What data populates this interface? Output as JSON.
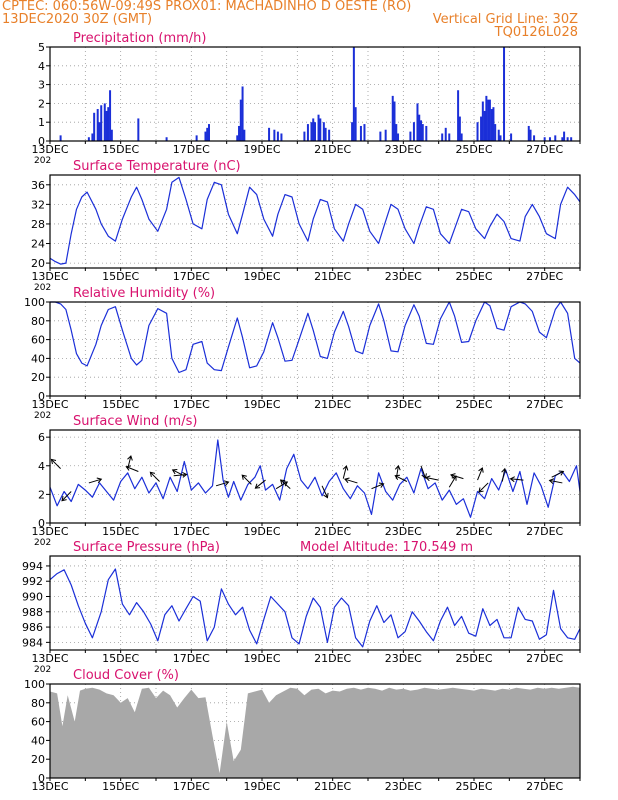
{
  "header": {
    "line1_left": "CPTEC:   060:56W-09:49S   PROX01: MACHADINHO D OESTE (RO)",
    "line2_left": "13DEC2020 30Z (GMT)",
    "line2_right": "Vertical Grid Line: 30Z",
    "line3_right": "TQ0126L028"
  },
  "x_axis": {
    "tick_labels": [
      "13DEC",
      "15DEC",
      "17DEC",
      "19DEC",
      "21DEC",
      "23DEC",
      "25DEC",
      "27DEC"
    ],
    "year_stub": "202"
  },
  "colors": {
    "line": "#1b2fd8",
    "title": "#d8126e",
    "header": "#e8802a",
    "cloud": "#a8a8a8",
    "arrow": "#000000"
  },
  "chart_data": [
    {
      "type": "bar",
      "title": "Precipitation (mm/h)",
      "ylim": [
        0,
        5
      ],
      "yticks": [
        0,
        1,
        2,
        3,
        4,
        5
      ],
      "x_unit": "days since 13DEC 00Z",
      "points": [
        [
          0.3,
          0.3
        ],
        [
          1.1,
          0.2
        ],
        [
          1.2,
          0.4
        ],
        [
          1.25,
          1.5
        ],
        [
          1.35,
          1.7
        ],
        [
          1.4,
          1.0
        ],
        [
          1.45,
          1.9
        ],
        [
          1.55,
          2.0
        ],
        [
          1.6,
          1.6
        ],
        [
          1.65,
          1.8
        ],
        [
          1.7,
          2.7
        ],
        [
          1.75,
          0.6
        ],
        [
          2.5,
          1.2
        ],
        [
          3.3,
          0.2
        ],
        [
          4.15,
          0.3
        ],
        [
          4.4,
          0.5
        ],
        [
          4.45,
          0.7
        ],
        [
          4.5,
          0.9
        ],
        [
          5.3,
          0.3
        ],
        [
          5.35,
          0.8
        ],
        [
          5.4,
          2.2
        ],
        [
          5.45,
          2.9
        ],
        [
          5.5,
          0.6
        ],
        [
          6.2,
          0.7
        ],
        [
          6.35,
          0.6
        ],
        [
          6.45,
          0.5
        ],
        [
          6.55,
          0.4
        ],
        [
          7.2,
          0.5
        ],
        [
          7.3,
          0.9
        ],
        [
          7.4,
          1.0
        ],
        [
          7.45,
          1.2
        ],
        [
          7.5,
          1.0
        ],
        [
          7.6,
          1.4
        ],
        [
          7.65,
          1.2
        ],
        [
          7.75,
          1.0
        ],
        [
          7.8,
          0.7
        ],
        [
          7.9,
          0.6
        ],
        [
          8.55,
          1.0
        ],
        [
          8.6,
          5.0
        ],
        [
          8.65,
          1.8
        ],
        [
          8.8,
          0.8
        ],
        [
          8.9,
          0.9
        ],
        [
          9.35,
          0.5
        ],
        [
          9.5,
          0.6
        ],
        [
          9.7,
          2.4
        ],
        [
          9.75,
          2.1
        ],
        [
          9.8,
          0.9
        ],
        [
          9.85,
          0.4
        ],
        [
          10.2,
          0.5
        ],
        [
          10.3,
          1.0
        ],
        [
          10.4,
          2.0
        ],
        [
          10.45,
          1.4
        ],
        [
          10.5,
          1.1
        ],
        [
          10.55,
          0.9
        ],
        [
          10.65,
          0.8
        ],
        [
          11.1,
          0.4
        ],
        [
          11.2,
          0.7
        ],
        [
          11.3,
          0.4
        ],
        [
          11.55,
          2.7
        ],
        [
          11.6,
          1.3
        ],
        [
          11.65,
          0.4
        ],
        [
          12.1,
          1.0
        ],
        [
          12.2,
          1.3
        ],
        [
          12.25,
          2.1
        ],
        [
          12.3,
          1.6
        ],
        [
          12.35,
          2.4
        ],
        [
          12.4,
          2.2
        ],
        [
          12.45,
          2.2
        ],
        [
          12.5,
          1.7
        ],
        [
          12.55,
          1.8
        ],
        [
          12.6,
          0.9
        ],
        [
          12.7,
          0.6
        ],
        [
          12.75,
          0.3
        ],
        [
          12.85,
          5.0
        ],
        [
          13.05,
          0.4
        ],
        [
          13.55,
          0.8
        ],
        [
          13.6,
          0.6
        ],
        [
          13.7,
          0.3
        ],
        [
          14.0,
          0.2
        ],
        [
          14.15,
          0.2
        ],
        [
          14.3,
          0.3
        ],
        [
          14.5,
          0.2
        ],
        [
          14.55,
          0.5
        ],
        [
          14.65,
          0.2
        ],
        [
          14.75,
          0.2
        ]
      ]
    },
    {
      "type": "line",
      "title": "Surface Temperature (nC)",
      "ylim": [
        19,
        38
      ],
      "yticks": [
        20,
        24,
        28,
        32,
        36
      ],
      "x": [
        0,
        0.15,
        0.3,
        0.45,
        0.6,
        0.75,
        0.9,
        1.05,
        1.3,
        1.45,
        1.65,
        1.85,
        2.05,
        2.3,
        2.45,
        2.6,
        2.8,
        3.05,
        3.3,
        3.45,
        3.65,
        3.85,
        4.05,
        4.3,
        4.45,
        4.65,
        4.85,
        5.05,
        5.3,
        5.45,
        5.65,
        5.85,
        6.05,
        6.3,
        6.45,
        6.65,
        6.85,
        7.05,
        7.3,
        7.45,
        7.65,
        7.85,
        8.05,
        8.3,
        8.45,
        8.65,
        8.85,
        9.05,
        9.3,
        9.45,
        9.65,
        9.85,
        10.05,
        10.3,
        10.45,
        10.65,
        10.85,
        11.05,
        11.3,
        11.45,
        11.65,
        11.85,
        12.05,
        12.3,
        12.45,
        12.65,
        12.85,
        13.05,
        13.3,
        13.45,
        13.65,
        13.85,
        14.05,
        14.3,
        14.45,
        14.65,
        14.85,
        15.0
      ],
      "values": [
        21,
        20.3,
        19.8,
        20,
        26,
        31,
        33.5,
        34.5,
        31,
        28,
        25.5,
        24.5,
        29,
        33.5,
        35.5,
        33,
        29,
        26.5,
        31,
        36.5,
        37.5,
        33,
        28,
        27,
        33,
        36.5,
        36,
        30,
        26,
        30,
        35.5,
        34,
        29,
        25.5,
        30,
        34,
        33.5,
        28,
        24.5,
        29,
        33,
        32.5,
        27,
        24.5,
        28,
        32,
        31,
        26.5,
        24,
        27.5,
        32,
        31,
        27,
        24,
        27.5,
        31.5,
        31,
        26,
        24,
        27,
        31,
        30.5,
        27,
        25,
        27.5,
        30,
        28.5,
        25,
        24.5,
        29.5,
        32,
        29.5,
        26,
        25,
        32,
        35.5,
        34,
        32.5
      ]
    },
    {
      "type": "line",
      "title": "Relative Humidity (%)",
      "ylim": [
        0,
        100
      ],
      "yticks": [
        0,
        20,
        40,
        60,
        80,
        100
      ],
      "x": [
        0,
        0.15,
        0.3,
        0.45,
        0.6,
        0.75,
        0.9,
        1.05,
        1.3,
        1.45,
        1.65,
        1.85,
        2.05,
        2.3,
        2.45,
        2.6,
        2.8,
        3.05,
        3.3,
        3.45,
        3.65,
        3.85,
        4.05,
        4.3,
        4.45,
        4.65,
        4.85,
        5.05,
        5.3,
        5.45,
        5.65,
        5.85,
        6.05,
        6.3,
        6.45,
        6.65,
        6.85,
        7.05,
        7.3,
        7.45,
        7.65,
        7.85,
        8.05,
        8.3,
        8.45,
        8.65,
        8.85,
        9.05,
        9.3,
        9.45,
        9.65,
        9.85,
        10.05,
        10.3,
        10.45,
        10.65,
        10.85,
        11.05,
        11.3,
        11.45,
        11.65,
        11.85,
        12.05,
        12.3,
        12.45,
        12.65,
        12.85,
        13.05,
        13.3,
        13.45,
        13.65,
        13.85,
        14.05,
        14.3,
        14.45,
        14.65,
        14.85,
        15.0
      ],
      "values": [
        100,
        100,
        98,
        92,
        70,
        45,
        35,
        32,
        55,
        75,
        92,
        95,
        70,
        40,
        33,
        38,
        75,
        93,
        88,
        40,
        25,
        28,
        55,
        58,
        35,
        28,
        27,
        52,
        83,
        62,
        30,
        32,
        47,
        78,
        62,
        37,
        38,
        60,
        88,
        70,
        42,
        40,
        68,
        90,
        74,
        48,
        45,
        75,
        98,
        80,
        48,
        47,
        75,
        97,
        85,
        56,
        55,
        82,
        100,
        85,
        57,
        58,
        80,
        100,
        96,
        72,
        70,
        95,
        100,
        98,
        90,
        68,
        62,
        92,
        100,
        88,
        40,
        35
      ]
    },
    {
      "type": "line",
      "title": "Surface Wind (m/s)",
      "ylim": [
        0,
        6.5
      ],
      "yticks": [
        0,
        2,
        4,
        6
      ],
      "note": "speed series with wind-direction arrows",
      "x": [
        0,
        0.2,
        0.4,
        0.6,
        0.8,
        1.0,
        1.2,
        1.4,
        1.6,
        1.8,
        2.0,
        2.2,
        2.4,
        2.6,
        2.8,
        3.0,
        3.2,
        3.4,
        3.6,
        3.8,
        4.0,
        4.2,
        4.4,
        4.6,
        4.75,
        4.9,
        5.05,
        5.2,
        5.4,
        5.6,
        5.8,
        5.95,
        6.1,
        6.3,
        6.5,
        6.7,
        6.9,
        7.1,
        7.3,
        7.5,
        7.7,
        7.9,
        8.1,
        8.3,
        8.5,
        8.7,
        8.9,
        9.1,
        9.3,
        9.5,
        9.7,
        9.9,
        10.1,
        10.3,
        10.5,
        10.7,
        10.9,
        11.1,
        11.3,
        11.5,
        11.7,
        11.9,
        12.1,
        12.3,
        12.5,
        12.7,
        12.9,
        13.1,
        13.3,
        13.5,
        13.7,
        13.9,
        14.1,
        14.3,
        14.5,
        14.7,
        14.9,
        15.0
      ],
      "values": [
        2.5,
        1.2,
        2.2,
        1.5,
        2.7,
        2.3,
        1.8,
        2.8,
        2.2,
        1.6,
        2.9,
        3.5,
        2.4,
        3.2,
        2.1,
        2.8,
        1.7,
        3.2,
        2.2,
        4.3,
        2.3,
        2.8,
        2.1,
        2.6,
        5.8,
        3.0,
        1.8,
        2.9,
        1.6,
        2.7,
        3.2,
        4.0,
        2.3,
        2.7,
        1.6,
        3.8,
        4.8,
        3.0,
        2.4,
        3.2,
        1.9,
        2.9,
        3.5,
        2.4,
        1.7,
        2.6,
        2.1,
        0.6,
        3.5,
        2.2,
        1.6,
        2.7,
        3.2,
        2.1,
        3.8,
        2.4,
        2.8,
        1.6,
        2.3,
        1.3,
        1.7,
        0.4,
        2.2,
        1.7,
        3.1,
        2.3,
        3.7,
        2.2,
        3.6,
        1.3,
        3.5,
        2.6,
        1.1,
        3.3,
        3.6,
        2.9,
        4.0,
        2.2
      ],
      "arrows": [
        {
          "x": 0.3,
          "y": 3.8,
          "dx": -1,
          "dy": 1
        },
        {
          "x": 0.6,
          "y": 2.2,
          "dx": -1,
          "dy": -1
        },
        {
          "x": 1.1,
          "y": 2.8,
          "dx": 1,
          "dy": 0.3
        },
        {
          "x": 2.2,
          "y": 3.8,
          "dx": 0.3,
          "dy": 1.2
        },
        {
          "x": 2.5,
          "y": 3.6,
          "dx": -1,
          "dy": 0.4
        },
        {
          "x": 3.1,
          "y": 2.9,
          "dx": -1,
          "dy": 1
        },
        {
          "x": 3.5,
          "y": 3.3,
          "dx": 1,
          "dy": 0.1
        },
        {
          "x": 3.8,
          "y": 3.3,
          "dx": -1,
          "dy": 0.5
        },
        {
          "x": 4.7,
          "y": 2.6,
          "dx": 1,
          "dy": 0.3
        },
        {
          "x": 5.7,
          "y": 2.7,
          "dx": -1,
          "dy": 1
        },
        {
          "x": 6.1,
          "y": 3.0,
          "dx": -1,
          "dy": -0.8
        },
        {
          "x": 6.4,
          "y": 2.4,
          "dx": 1,
          "dy": 0.6
        },
        {
          "x": 6.8,
          "y": 2.4,
          "dx": -1,
          "dy": 0.9
        },
        {
          "x": 7.7,
          "y": 2.6,
          "dx": 0.5,
          "dy": -1.1
        },
        {
          "x": 8.3,
          "y": 3.1,
          "dx": 0.3,
          "dy": 1.2
        },
        {
          "x": 8.7,
          "y": 2.8,
          "dx": -1,
          "dy": 0.3
        },
        {
          "x": 9.1,
          "y": 2.4,
          "dx": 1,
          "dy": 0.4
        },
        {
          "x": 9.8,
          "y": 3.1,
          "dx": 0.2,
          "dy": 1.2
        },
        {
          "x": 10.1,
          "y": 2.9,
          "dx": -1,
          "dy": 0.5
        },
        {
          "x": 10.5,
          "y": 4.0,
          "dx": 0.4,
          "dy": -1.1
        },
        {
          "x": 11.0,
          "y": 3.0,
          "dx": -1,
          "dy": 0.2
        },
        {
          "x": 11.3,
          "y": 2.5,
          "dx": 0.6,
          "dy": 1.0
        },
        {
          "x": 11.7,
          "y": 3.1,
          "dx": -1,
          "dy": 0.3
        },
        {
          "x": 12.1,
          "y": 3.0,
          "dx": 0.4,
          "dy": 1.0
        },
        {
          "x": 12.4,
          "y": 2.8,
          "dx": -1,
          "dy": -1
        },
        {
          "x": 12.8,
          "y": 2.9,
          "dx": 0.2,
          "dy": 1.0
        },
        {
          "x": 13.4,
          "y": 3.0,
          "dx": -1,
          "dy": 0.1
        },
        {
          "x": 14.2,
          "y": 3.2,
          "dx": 1,
          "dy": 0.5
        },
        {
          "x": 14.5,
          "y": 2.8,
          "dx": -1,
          "dy": 0.2
        }
      ]
    },
    {
      "type": "line",
      "title": "Surface Pressure (hPa)",
      "extra_label": "Model Altitude: 170.549 m",
      "ylim": [
        983,
        995.3
      ],
      "yticks": [
        984,
        986,
        988,
        990,
        992,
        994
      ],
      "x": [
        0,
        0.2,
        0.4,
        0.6,
        0.8,
        1.0,
        1.2,
        1.45,
        1.65,
        1.85,
        2.05,
        2.25,
        2.45,
        2.65,
        2.85,
        3.05,
        3.25,
        3.45,
        3.65,
        3.85,
        4.05,
        4.25,
        4.45,
        4.65,
        4.85,
        5.05,
        5.25,
        5.45,
        5.65,
        5.85,
        6.05,
        6.25,
        6.45,
        6.65,
        6.85,
        7.05,
        7.25,
        7.45,
        7.65,
        7.85,
        8.05,
        8.25,
        8.45,
        8.65,
        8.85,
        9.05,
        9.25,
        9.45,
        9.65,
        9.85,
        10.05,
        10.25,
        10.45,
        10.65,
        10.85,
        11.05,
        11.25,
        11.45,
        11.65,
        11.85,
        12.05,
        12.25,
        12.45,
        12.65,
        12.85,
        13.05,
        13.25,
        13.45,
        13.65,
        13.85,
        14.05,
        14.25,
        14.45,
        14.65,
        14.85,
        15.0
      ],
      "values": [
        992.2,
        993.0,
        993.5,
        991.5,
        988.8,
        986.5,
        984.6,
        988,
        992.2,
        993.6,
        989,
        987.6,
        989.2,
        988.0,
        986.4,
        984.2,
        987.6,
        988.8,
        986.8,
        988.4,
        990.0,
        989.4,
        984.2,
        986.0,
        991.0,
        989.0,
        987.6,
        988.6,
        985.6,
        983.8,
        987.0,
        990.0,
        989.0,
        988.0,
        984.6,
        983.8,
        987.4,
        989.8,
        988.6,
        984.0,
        988.6,
        989.8,
        988.8,
        984.6,
        983.4,
        986.8,
        988.8,
        986.6,
        987.6,
        984.6,
        985.4,
        988.0,
        986.8,
        985.4,
        984.2,
        986.8,
        988.6,
        986.2,
        987.4,
        985.2,
        984.8,
        988.4,
        986.2,
        987.0,
        984.6,
        984.6,
        988.6,
        987.0,
        986.8,
        984.4,
        985.0,
        990.8,
        985.8,
        984.6,
        984.4,
        985.8
      ]
    },
    {
      "type": "area",
      "title": "Cloud Cover (%)",
      "ylim": [
        0,
        100
      ],
      "yticks": [
        0,
        20,
        40,
        60,
        80,
        100
      ],
      "x": [
        0,
        0.2,
        0.35,
        0.5,
        0.7,
        0.85,
        1.0,
        1.2,
        1.4,
        1.6,
        1.8,
        2.0,
        2.2,
        2.4,
        2.6,
        2.8,
        3.0,
        3.2,
        3.4,
        3.6,
        3.8,
        4.0,
        4.2,
        4.4,
        4.6,
        4.8,
        5.0,
        5.2,
        5.4,
        5.6,
        5.8,
        6.0,
        6.2,
        6.4,
        6.6,
        6.8,
        7.0,
        7.2,
        7.4,
        7.6,
        7.8,
        8.0,
        8.2,
        8.4,
        8.6,
        8.8,
        9.0,
        9.2,
        9.4,
        9.6,
        9.8,
        10.0,
        10.2,
        10.4,
        10.6,
        10.8,
        11.0,
        11.2,
        11.4,
        11.6,
        11.8,
        12.0,
        12.2,
        12.4,
        12.6,
        12.8,
        13.0,
        13.2,
        13.4,
        13.6,
        13.8,
        14.0,
        14.2,
        14.4,
        14.6,
        14.8,
        15.0
      ],
      "values": [
        92,
        90,
        55,
        88,
        60,
        93,
        95,
        96,
        94,
        90,
        88,
        80,
        85,
        70,
        95,
        96,
        85,
        93,
        88,
        75,
        85,
        94,
        85,
        86,
        45,
        5,
        60,
        18,
        30,
        90,
        92,
        94,
        80,
        88,
        92,
        96,
        95,
        88,
        94,
        95,
        90,
        93,
        92,
        95,
        96,
        94,
        96,
        95,
        93,
        96,
        94,
        95,
        93,
        94,
        96,
        95,
        94,
        95,
        96,
        95,
        94,
        93,
        95,
        94,
        93,
        95,
        94,
        96,
        95,
        94,
        96,
        95,
        96,
        95,
        96,
        97,
        96
      ]
    }
  ]
}
